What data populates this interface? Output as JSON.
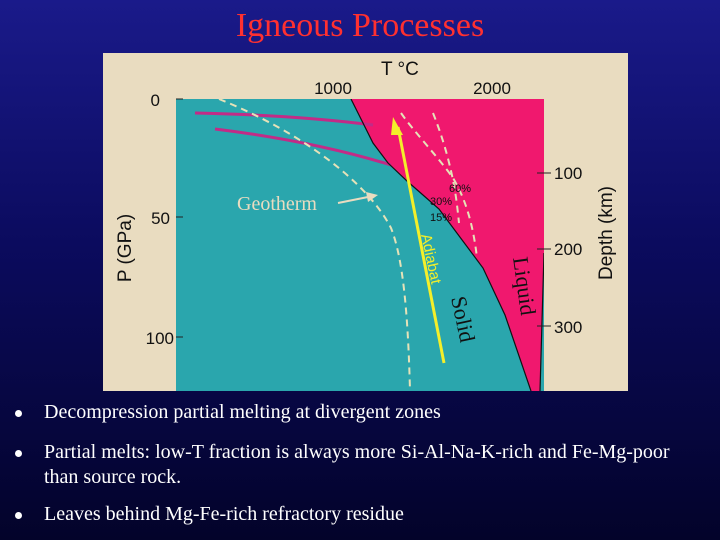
{
  "slide": {
    "title": "Igneous Processes",
    "bullets": [
      "Decompression partial melting at divergent zones",
      "Partial melts: low-T fraction is always more Si-Al-Na-K-rich and Fe-Mg-poor than source rock.",
      "Leaves behind Mg-Fe-rich refractory residue"
    ]
  },
  "diagram": {
    "top_axis_label": "T °C",
    "top_ticks": [
      "1000",
      "2000"
    ],
    "left_axis_label": "P (GPa)",
    "left_ticks": [
      "0",
      "50",
      "100"
    ],
    "right_axis_label": "Depth (km)",
    "right_ticks": [
      "100",
      "200",
      "300"
    ],
    "labels": {
      "geotherm": "Geotherm",
      "adiabat": "Adiabat",
      "liquid": "Liquid",
      "solid": "Solid",
      "melt_60": "60%",
      "melt_30": "30%",
      "melt_15": "15%"
    },
    "colors": {
      "background": "#e9dcc0",
      "mantle": "#2aa6ad",
      "melt_region": "#f0186e",
      "geotherm": "#c22b87",
      "adiabat": "#f3ef2a",
      "slide_title": "#ff3030"
    }
  }
}
